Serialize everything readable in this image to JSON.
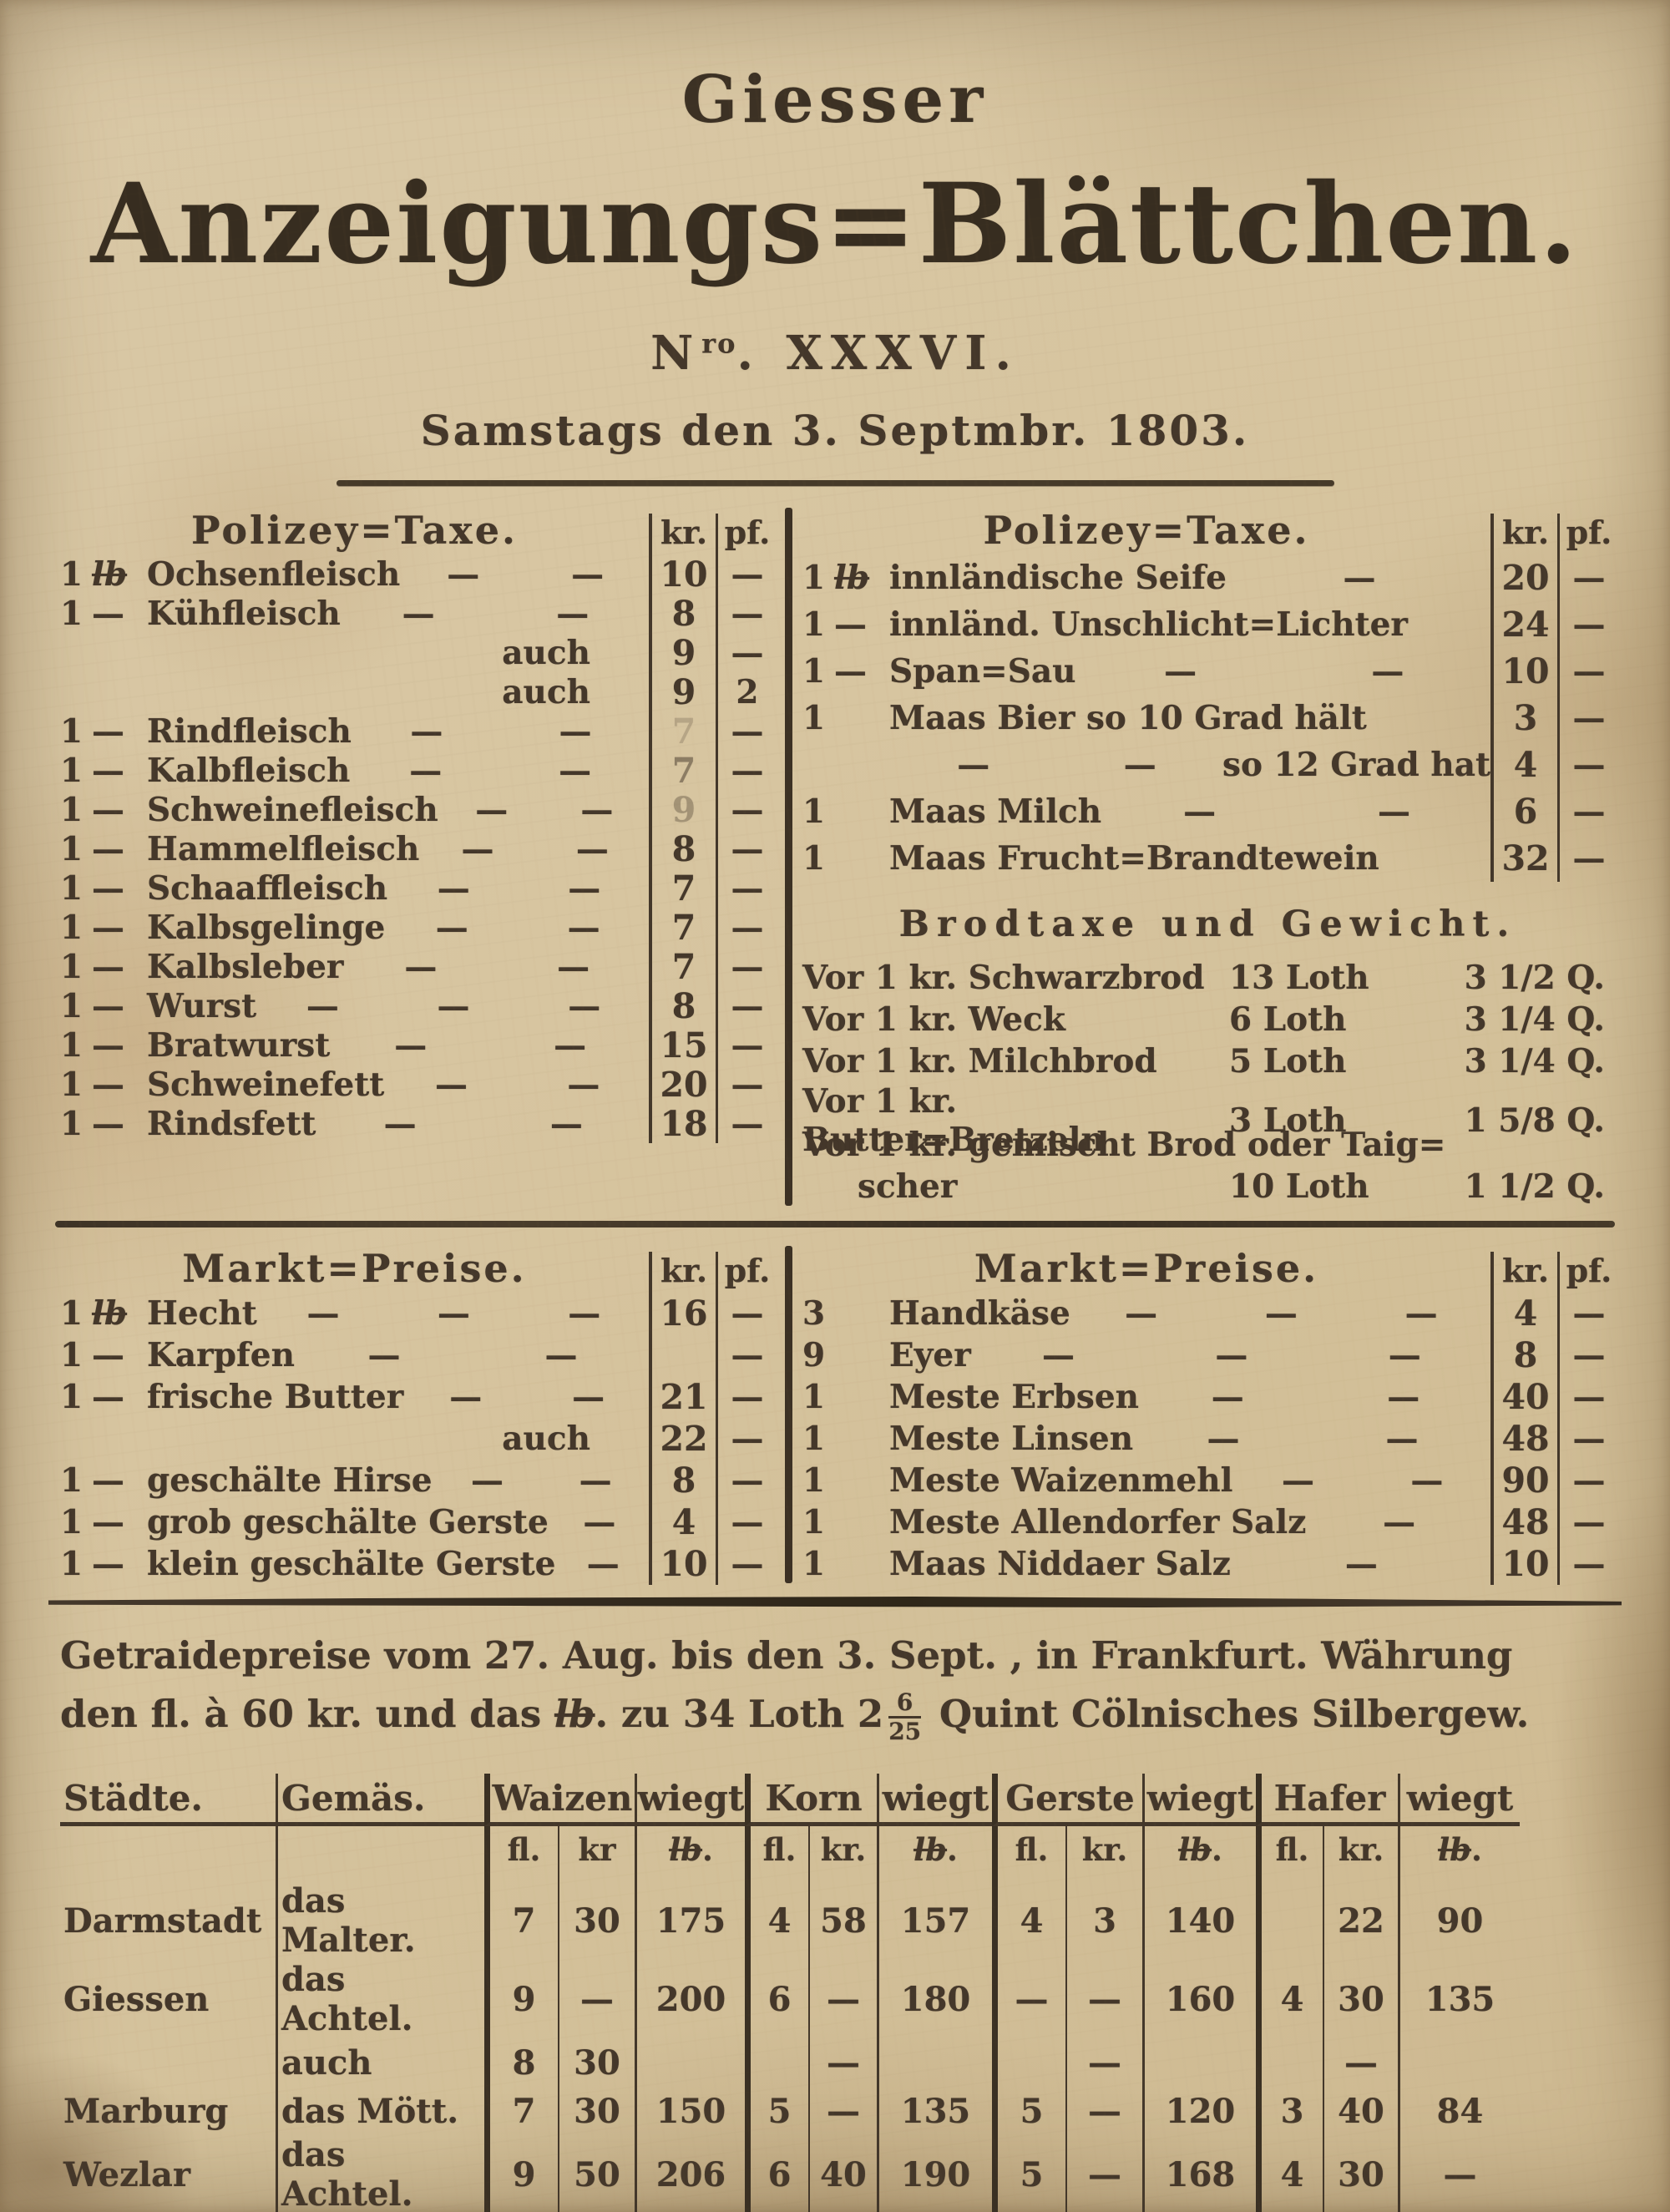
{
  "masthead": {
    "title_top": "Giesser",
    "title_main": "Anzeigungs=Blättchen.",
    "issue_prefix": "N",
    "issue_sup": "ro",
    "issue_rest": ". XXXVI.",
    "dateline": "Samstags den 3. Septmbr. 1803."
  },
  "polizey_left": {
    "title": "Polizey=Taxe.",
    "kr_header": "kr.",
    "pf_header": "pf.",
    "rows": [
      {
        "qty": "1",
        "unit": "lb",
        "label": "Ochsenfleisch",
        "dashes": 2,
        "kr": "10",
        "pf": "—"
      },
      {
        "qty": "1",
        "unit": "—",
        "label": "Kühfleisch",
        "dashes": 2,
        "kr": "8",
        "pf": "—"
      },
      {
        "auch": true,
        "label": "auch",
        "kr": "9",
        "pf": "—"
      },
      {
        "auch": true,
        "label": "auch",
        "kr": "9",
        "pf": "2"
      },
      {
        "qty": "1",
        "unit": "—",
        "label": "Rindfleisch",
        "dashes": 2,
        "kr": "7",
        "pf": "—",
        "faint": 0.22
      },
      {
        "qty": "1",
        "unit": "—",
        "label": "Kalbfleisch",
        "dashes": 2,
        "kr": "7",
        "pf": "—",
        "faint": 0.5
      },
      {
        "qty": "1",
        "unit": "—",
        "label": "Schweinefleisch",
        "dashes": 2,
        "kr": "9",
        "pf": "—",
        "faint": 0.35
      },
      {
        "qty": "1",
        "unit": "—",
        "label": "Hammelfleisch",
        "dashes": 2,
        "kr": "8",
        "pf": "—"
      },
      {
        "qty": "1",
        "unit": "—",
        "label": "Schaaffleisch",
        "dashes": 2,
        "kr": "7",
        "pf": "—"
      },
      {
        "qty": "1",
        "unit": "—",
        "label": "Kalbsgelinge",
        "dashes": 2,
        "kr": "7",
        "pf": "—"
      },
      {
        "qty": "1",
        "unit": "—",
        "label": "Kalbsleber",
        "dashes": 2,
        "kr": "7",
        "pf": "—"
      },
      {
        "qty": "1",
        "unit": "—",
        "label": "Wurst",
        "dashes": 3,
        "kr": "8",
        "pf": "—"
      },
      {
        "qty": "1",
        "unit": "—",
        "label": "Bratwurst",
        "dashes": 2,
        "kr": "15",
        "pf": "—"
      },
      {
        "qty": "1",
        "unit": "—",
        "label": "Schweinefett",
        "dashes": 2,
        "kr": "20",
        "pf": "—"
      },
      {
        "qty": "1",
        "unit": "—",
        "label": "Rindsfett",
        "dashes": 2,
        "kr": "18",
        "pf": "—"
      }
    ]
  },
  "polizey_right": {
    "title": "Polizey=Taxe.",
    "kr_header": "kr.",
    "pf_header": "pf.",
    "rows": [
      {
        "qty": "1",
        "unit": "lb",
        "label": "innländische Seife",
        "dashes": 1,
        "kr": "20",
        "pf": "—"
      },
      {
        "qty": "1",
        "unit": "—",
        "label": "innländ. Unschlicht=Lichter",
        "dashes": 0,
        "kr": "24",
        "pf": "—"
      },
      {
        "qty": "1",
        "unit": "—",
        "label": "Span=Sau",
        "dashes": 2,
        "kr": "10",
        "pf": "—"
      },
      {
        "qty": "1",
        "unit": "",
        "label": "Maas Bier so 10 Grad hält",
        "dashes": 0,
        "kr": "3",
        "pf": "—"
      },
      {
        "qty": "",
        "unit": "",
        "pre_dashes": 2,
        "label": "so 12 Grad hat",
        "dashes": 0,
        "kr": "4",
        "pf": "—"
      },
      {
        "qty": "1",
        "unit": "",
        "label": "Maas Milch",
        "dashes": 2,
        "kr": "6",
        "pf": "—"
      },
      {
        "qty": "1",
        "unit": "",
        "label": "Maas Frucht=Brandtewein",
        "dashes": 0,
        "kr": "32",
        "pf": "—"
      }
    ]
  },
  "brodtaxe": {
    "title": "Brodtaxe und Gewicht.",
    "lines": [
      {
        "left": "Vor 1 kr. Schwarzbrod",
        "mid": "13 Loth",
        "right": "3 1/2 Q."
      },
      {
        "left": "Vor 1 kr. Weck",
        "mid": "6 Loth",
        "right": "3 1/4 Q."
      },
      {
        "left": "Vor 1 kr. Milchbrod",
        "mid": "5 Loth",
        "right": "3 1/4 Q."
      },
      {
        "left": "Vor 1 kr. Butter=Bretzeln",
        "mid": "3 Loth",
        "right": "1 5/8 Q."
      },
      {
        "left": "Vor 1 kr. gemischt Brod oder Taig=",
        "mid": "",
        "right": "",
        "span": true
      },
      {
        "left": "scher",
        "mid": "10 Loth",
        "right": "1 1/2 Q.",
        "indent": true
      }
    ]
  },
  "markt_left": {
    "title": "Markt=Preise.",
    "kr_header": "kr.",
    "pf_header": "pf.",
    "rows": [
      {
        "qty": "1",
        "unit": "lb",
        "label": "Hecht",
        "dashes": 3,
        "kr": "16",
        "pf": "—"
      },
      {
        "qty": "1",
        "unit": "—",
        "label": "Karpfen",
        "dashes": 2,
        "kr": "",
        "pf": "—"
      },
      {
        "qty": "1",
        "unit": "—",
        "label": "frische Butter",
        "dashes": 2,
        "kr": "21",
        "pf": "—"
      },
      {
        "auch": true,
        "label": "auch",
        "kr": "22",
        "pf": "—"
      },
      {
        "qty": "1",
        "unit": "—",
        "label": "geschälte Hirse",
        "dashes": 2,
        "kr": "8",
        "pf": "—"
      },
      {
        "qty": "1",
        "unit": "—",
        "label": "grob geschälte Gerste",
        "dashes": 1,
        "kr": "4",
        "pf": "—"
      },
      {
        "qty": "1",
        "unit": "—",
        "label": "klein geschälte Gerste",
        "dashes": 1,
        "kr": "10",
        "pf": "—"
      }
    ]
  },
  "markt_right": {
    "title": "Markt=Preise.",
    "kr_header": "kr.",
    "pf_header": "pf.",
    "rows": [
      {
        "qty": "3",
        "unit": "",
        "label": "Handkäse",
        "dashes": 3,
        "kr": "4",
        "pf": "—"
      },
      {
        "qty": "9",
        "unit": "",
        "label": "Eyer",
        "dashes": 3,
        "kr": "8",
        "pf": "—"
      },
      {
        "qty": "1",
        "unit": "",
        "label": "Meste Erbsen",
        "dashes": 2,
        "kr": "40",
        "pf": "—"
      },
      {
        "qty": "1",
        "unit": "",
        "label": "Meste Linsen",
        "dashes": 2,
        "kr": "48",
        "pf": "—"
      },
      {
        "qty": "1",
        "unit": "",
        "label": "Meste Waizenmehl",
        "dashes": 2,
        "kr": "90",
        "pf": "—"
      },
      {
        "qty": "1",
        "unit": "",
        "label": "Meste Allendorfer Salz",
        "dashes": 1,
        "kr": "48",
        "pf": "—"
      },
      {
        "qty": "1",
        "unit": "",
        "label": "Maas Niddaer Salz",
        "dashes": 1,
        "kr": "10",
        "pf": "—"
      }
    ]
  },
  "getraide": {
    "line1": "Getraidepreise vom 27. Aug. bis den 3. Sept. , in Frankfurt. Währung",
    "l2_p1": "den fl. à 60 kr. und das ",
    "l2_lb": "lb",
    "l2_p2": ". zu 34 Loth 2",
    "l2_num": "6",
    "l2_den": "25",
    "l2_p3": " Quint Cölnisches Silbergew."
  },
  "grain_table": {
    "col_staedte": "Städte.",
    "col_gemaes": "Gemäs.",
    "groups": [
      "Waizen",
      "Korn",
      "Gerste",
      "Hafer"
    ],
    "wiegt": "wiegt",
    "sub": [
      "fl.",
      "kr",
      "lb.",
      "fl.",
      "kr.",
      "lb.",
      "fl.",
      "kr.",
      "lb.",
      "fl.",
      "kr.",
      "lb."
    ],
    "rows": [
      {
        "cells": [
          "Darmstadt",
          "das Malter.",
          "7",
          "30",
          "175",
          "4",
          "58",
          "157",
          "4",
          "3",
          "140",
          "",
          "22",
          "90"
        ]
      },
      {
        "cells": [
          "Giessen",
          "das Achtel.",
          "9",
          "—",
          "200",
          "6",
          "—",
          "180",
          "—",
          "—",
          "160",
          "4",
          "30",
          "135"
        ]
      },
      {
        "cells": [
          "",
          "auch",
          "8",
          "30",
          "",
          "",
          "—",
          "",
          "",
          "—",
          "",
          "",
          "—",
          ""
        ]
      },
      {
        "cells": [
          "Marburg",
          "das Mött.",
          "7",
          "30",
          "150",
          "5",
          "—",
          "135",
          "5",
          "—",
          "120",
          "3",
          "40",
          "84"
        ]
      },
      {
        "cells": [
          "Wezlar",
          "das Achtel.",
          "9",
          "50",
          "206",
          "6",
          "40",
          "190",
          "5",
          "—",
          "168",
          "4",
          "30",
          "—"
        ]
      }
    ]
  }
}
